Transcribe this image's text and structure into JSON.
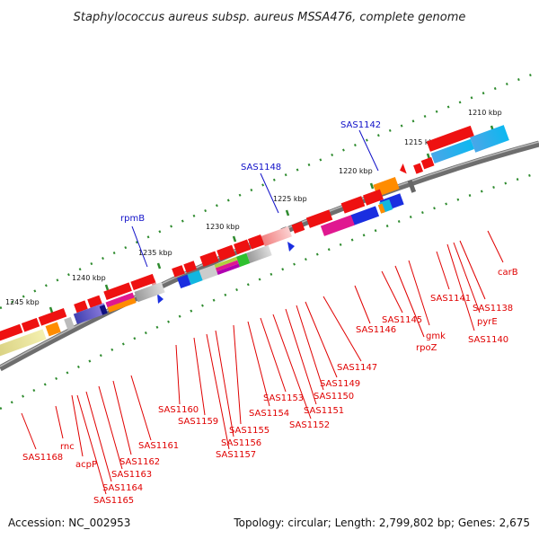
{
  "title": "Staphylococcus aureus subsp. aureus MSSA476, complete genome",
  "accession_text": "Accession: NC_002953",
  "topology_text": "Topology: circular; Length: 2,799,802 bp; Genes: 2,675",
  "colors": {
    "backbone": "#7a7a7a",
    "gene_red": "#ee1111",
    "label_red": "#e00000",
    "label_blue": "#1010c8",
    "tick_green": "#2e8b2e"
  },
  "scale_labels": [
    "1210 kbp",
    "1215 kbp",
    "1220 kbp",
    "1225 kbp",
    "1230 kbp",
    "1235 kbp",
    "1240 kbp",
    "1245 kbp"
  ],
  "gene_labels_top": [
    "SAS1142",
    "SAS1148",
    "rpmB"
  ],
  "gene_labels_bottom": [
    "carB",
    "SAS1138",
    "pyrE",
    "SAS1140",
    "SAS1141",
    "gmk",
    "rpoZ",
    "SAS1145",
    "SAS1146",
    "SAS1147",
    "SAS1149",
    "SAS1150",
    "SAS1151",
    "SAS1152",
    "SAS1153",
    "SAS1154",
    "SAS1155",
    "SAS1156",
    "SAS1157",
    "SAS1159",
    "SAS1160",
    "SAS1161",
    "SAS1162",
    "SAS1163",
    "SAS1164",
    "SAS1165",
    "acpP",
    "rnc",
    "SAS1168"
  ]
}
